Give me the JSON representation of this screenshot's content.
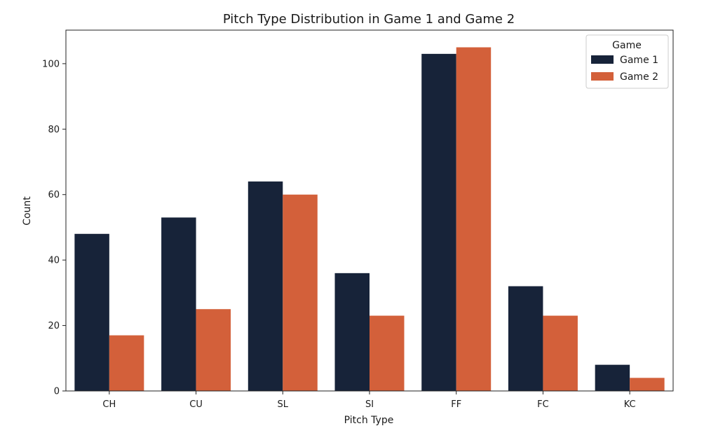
{
  "chart_data": {
    "type": "bar",
    "title": "Pitch Type Distribution in Game 1 and Game 2",
    "xlabel": "Pitch Type",
    "ylabel": "Count",
    "categories": [
      "CH",
      "CU",
      "SL",
      "SI",
      "FF",
      "FC",
      "KC"
    ],
    "series": [
      {
        "name": "Game 1",
        "color": "#172339",
        "values": [
          48,
          53,
          64,
          36,
          103,
          32,
          8
        ]
      },
      {
        "name": "Game 2",
        "color": "#d3603a",
        "values": [
          17,
          25,
          60,
          23,
          105,
          23,
          4
        ]
      }
    ],
    "ylim": [
      0,
      110.25
    ],
    "yticks": [
      0,
      20,
      40,
      60,
      80,
      100
    ],
    "legend": {
      "title": "Game",
      "placement": "top-right"
    },
    "grid": false
  }
}
